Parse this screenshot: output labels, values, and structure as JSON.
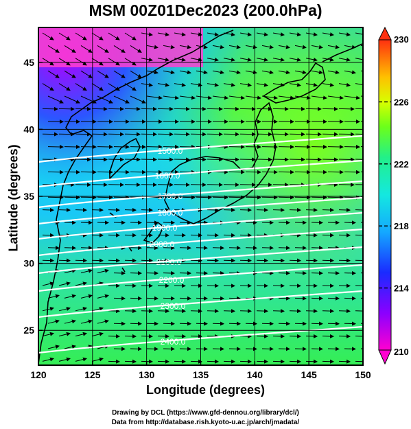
{
  "title": "MSM 00Z01Dec2023 (200.0hPa)",
  "map": {
    "xlabel": "Longitude (degrees)",
    "ylabel": "Latitude  (degrees)",
    "lon_range": [
      120,
      150
    ],
    "lat_range": [
      22.4,
      47.6
    ],
    "lon_ticks": [
      "120",
      "125",
      "130",
      "135",
      "140",
      "145",
      "150"
    ],
    "lat_ticks": [
      "25",
      "30",
      "35",
      "40",
      "45"
    ],
    "grid": true
  },
  "colorbar": {
    "min": 210,
    "max": 230,
    "tick_labels": [
      "230",
      "226",
      "222",
      "218",
      "214",
      "210"
    ],
    "units": ""
  },
  "contours": {
    "labels": [
      "1500.0",
      "1600.0",
      "1700.0",
      "1800.0",
      "1900.0",
      "2000.0",
      "2100.0",
      "2200.0",
      "2300.0",
      "2400.0"
    ]
  },
  "credits": {
    "line1": "Drawing by DCL (https://www.gfd-dennou.org/library/dcl/)",
    "line2": "Data from http://database.rish.kyoto-u.ac.jp/arch/jmadata/"
  }
}
